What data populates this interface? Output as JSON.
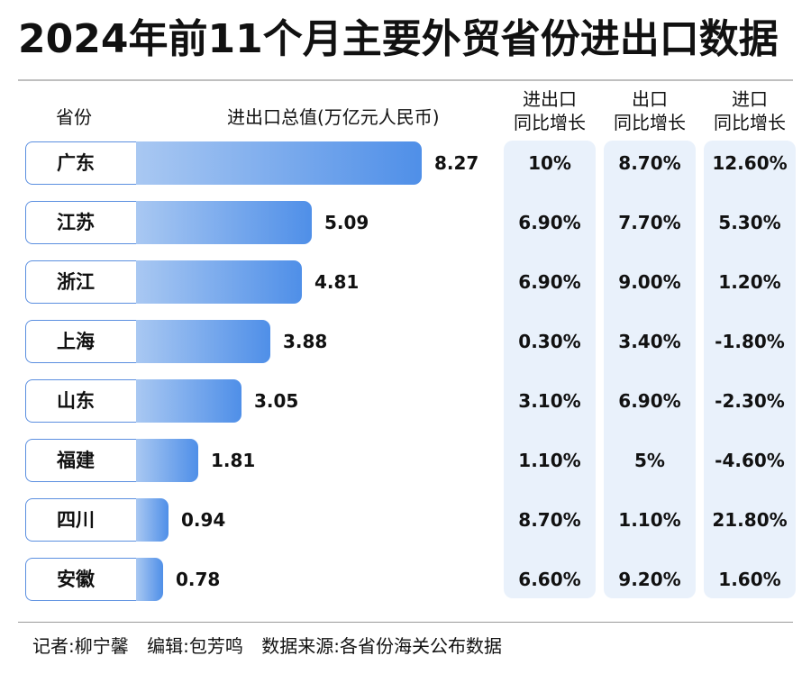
{
  "title": "2024年前11个月主要外贸省份进出口数据",
  "headers": {
    "province": "省份",
    "total": "进出口总值(万亿元人民币)",
    "col1": [
      "进出口",
      "同比增长"
    ],
    "col2": [
      "出口",
      "同比增长"
    ],
    "col3": [
      "进口",
      "同比增长"
    ]
  },
  "chart_data": {
    "type": "bar",
    "title": "2024年前11个月主要外贸省份进出口数据",
    "categories": [
      "广东",
      "江苏",
      "浙江",
      "上海",
      "山东",
      "福建",
      "四川",
      "安徽"
    ],
    "series": [
      {
        "name": "进出口总值(万亿元人民币)",
        "values": [
          8.27,
          5.09,
          4.81,
          3.88,
          3.05,
          1.81,
          0.94,
          0.78
        ]
      }
    ],
    "value_labels": [
      "8.27",
      "5.09",
      "4.81",
      "3.88",
      "3.05",
      "1.81",
      "0.94",
      "0.78"
    ],
    "bar_color_start": "#a9c8f2",
    "bar_color_end": "#4f8fe8",
    "table": {
      "columns": [
        "进出口同比增长",
        "出口同比增长",
        "进口同比增长"
      ],
      "rows": [
        [
          "10%",
          "8.70%",
          "12.60%"
        ],
        [
          "6.90%",
          "7.70%",
          "5.30%"
        ],
        [
          "6.90%",
          "9.00%",
          "1.20%"
        ],
        [
          "0.30%",
          "3.40%",
          "-1.80%"
        ],
        [
          "3.10%",
          "6.90%",
          "-2.30%"
        ],
        [
          "1.10%",
          "5%",
          "-4.60%"
        ],
        [
          "8.70%",
          "1.10%",
          "21.80%"
        ],
        [
          "6.60%",
          "9.20%",
          "1.60%"
        ]
      ]
    }
  },
  "footer": {
    "reporter": "记者:柳宁馨",
    "editor": "编辑:包芳鸣",
    "source": "数据来源:各省份海关公布数据"
  },
  "colors": {
    "column_bg": "#e9f1fb",
    "province_border": "#5b8fe0"
  }
}
